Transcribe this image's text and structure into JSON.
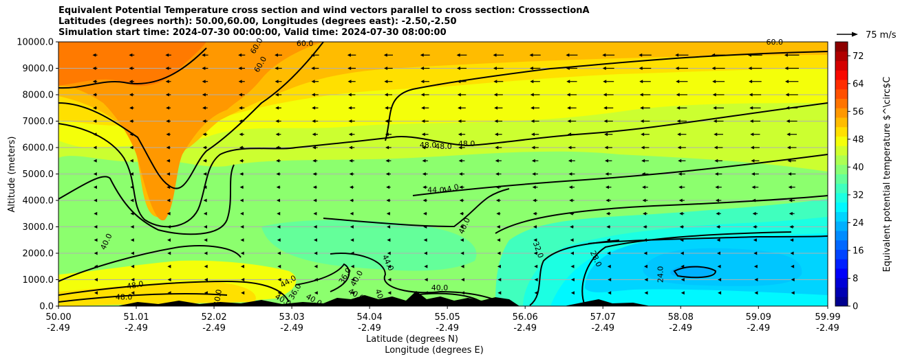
{
  "chart_data": {
    "type": "heatmap",
    "title_lines": [
      "Equivalent Potential Temperature cross section and wind vectors parallel to cross section: CrosssectionA",
      "Latitudes (degrees north): 50.00,60.00, Longitudes (degrees east): -2.50,-2.50",
      "Simulation start time: 2024-07-30 00:00:00, Valid time: 2024-07-30 08:00:00"
    ],
    "ylabel": "Altitude (meters)",
    "xlabel_lines": [
      "Latitude (degrees N)",
      "Longitude (degrees E)"
    ],
    "ylim": [
      0,
      10000
    ],
    "xlim": [
      50.0,
      59.99
    ],
    "y_ticks": [
      "0.0",
      "1000.0",
      "2000.0",
      "3000.0",
      "4000.0",
      "5000.0",
      "6000.0",
      "7000.0",
      "8000.0",
      "9000.0",
      "10000.0"
    ],
    "x_ticks": [
      {
        "lat": "50.00",
        "lon": "-2.49"
      },
      {
        "lat": "51.01",
        "lon": "-2.49"
      },
      {
        "lat": "52.02",
        "lon": "-2.49"
      },
      {
        "lat": "53.03",
        "lon": "-2.49"
      },
      {
        "lat": "54.04",
        "lon": "-2.49"
      },
      {
        "lat": "55.05",
        "lon": "-2.49"
      },
      {
        "lat": "56.06",
        "lon": "-2.49"
      },
      {
        "lat": "57.07",
        "lon": "-2.49"
      },
      {
        "lat": "58.08",
        "lon": "-2.49"
      },
      {
        "lat": "59.09",
        "lon": "-2.49"
      },
      {
        "lat": "59.99",
        "lon": "-2.49"
      }
    ],
    "grid": "horizontal",
    "colorbar": {
      "label": "Equivalent potential temperature $^\\circ$C",
      "range": [
        0,
        76
      ],
      "ticks": [
        "0",
        "8",
        "16",
        "24",
        "32",
        "40",
        "48",
        "56",
        "64",
        "72"
      ],
      "colors": [
        "#00008f",
        "#0000b3",
        "#0000d6",
        "#0000fa",
        "#0020ff",
        "#0044ff",
        "#0068ff",
        "#008cff",
        "#00b0ff",
        "#00d4ff",
        "#00f8ff",
        "#1cffe2",
        "#40ffbe",
        "#64ff9a",
        "#88ff76",
        "#acff52",
        "#d0ff2e",
        "#f4ff0a",
        "#ffe000",
        "#ffbc00",
        "#ff9800",
        "#ff7400",
        "#ff5000",
        "#ff2c00",
        "#f80800",
        "#d40000",
        "#b00000",
        "#8c0000"
      ]
    },
    "quiver_key": "75 m/s",
    "contour_labels": [
      {
        "text": "60.0",
        "lat": 52.6,
        "alt": 9800,
        "rot": -60
      },
      {
        "text": "60.0",
        "lat": 52.65,
        "alt": 9100,
        "rot": -60
      },
      {
        "text": "60.0",
        "lat": 53.2,
        "alt": 9850,
        "rot": 0
      },
      {
        "text": "60.0",
        "lat": 59.3,
        "alt": 9900,
        "rot": 0
      },
      {
        "text": "48.0",
        "lat": 54.8,
        "alt": 6000,
        "rot": 0
      },
      {
        "text": "48.0",
        "lat": 55.0,
        "alt": 5950,
        "rot": 0
      },
      {
        "text": "48.0",
        "lat": 55.3,
        "alt": 6050,
        "rot": 0
      },
      {
        "text": "44.0",
        "lat": 54.9,
        "alt": 4300,
        "rot": 0
      },
      {
        "text": "44.0",
        "lat": 55.1,
        "alt": 4350,
        "rot": -15
      },
      {
        "text": "40.0",
        "lat": 55.3,
        "alt": 3000,
        "rot": -65
      },
      {
        "text": "40.0",
        "lat": 50.65,
        "alt": 2400,
        "rot": -65
      },
      {
        "text": "48.0",
        "lat": 51.0,
        "alt": 700,
        "rot": -10
      },
      {
        "text": "48.0",
        "lat": 50.85,
        "alt": 250,
        "rot": 0
      },
      {
        "text": "44.0",
        "lat": 53.0,
        "alt": 850,
        "rot": -30
      },
      {
        "text": "40.0",
        "lat": 52.1,
        "alt": 300,
        "rot": -80
      },
      {
        "text": "36.0",
        "lat": 53.1,
        "alt": 500,
        "rot": -60
      },
      {
        "text": "40.0",
        "lat": 52.9,
        "alt": 150,
        "rot": 30
      },
      {
        "text": "40.0",
        "lat": 53.3,
        "alt": 150,
        "rot": 30
      },
      {
        "text": "36.0",
        "lat": 53.75,
        "alt": 1100,
        "rot": -60
      },
      {
        "text": "40.0",
        "lat": 53.9,
        "alt": 1000,
        "rot": -60
      },
      {
        "text": "40.0",
        "lat": 53.85,
        "alt": 350,
        "rot": 30
      },
      {
        "text": "40.0",
        "lat": 54.15,
        "alt": 300,
        "rot": 70
      },
      {
        "text": "44.0",
        "lat": 54.25,
        "alt": 1600,
        "rot": 65
      },
      {
        "text": "40.0",
        "lat": 54.95,
        "alt": 600,
        "rot": 0
      },
      {
        "text": "32.0",
        "lat": 56.2,
        "alt": 2100,
        "rot": 70
      },
      {
        "text": "28.0",
        "lat": 56.95,
        "alt": 1750,
        "rot": 65
      },
      {
        "text": "24.0",
        "lat": 57.85,
        "alt": 1200,
        "rot": -90
      }
    ],
    "wind_direction": "southward (toward 50N) aloft, weak near surface"
  }
}
